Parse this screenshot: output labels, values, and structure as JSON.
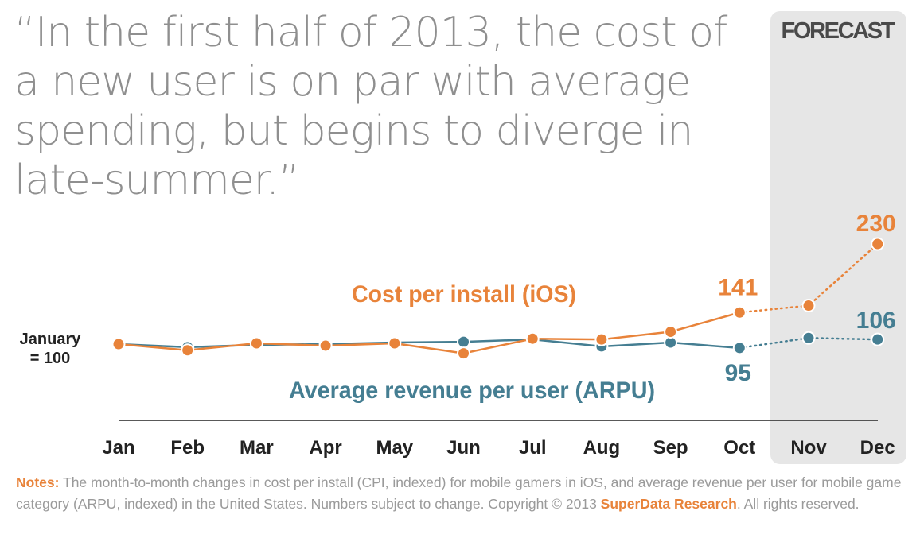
{
  "title": "“In the first half of 2013, the cost of a new user is on par with average spending, but begins to diverge in late-summer.”",
  "forecast_label": "FORECAST",
  "baseline_label": [
    "January",
    "= 100"
  ],
  "colors": {
    "cpi": "#e8833a",
    "arpu": "#457e92",
    "forecast_bg": "#e6e6e6",
    "axis": "#222222"
  },
  "notes": {
    "label": "Notes:",
    "text": " The month-to-month changes in cost per install (CPI, indexed) for mobile gamers in iOS, and average revenue per user for mobile game category (ARPU, indexed) in the United States. Numbers subject to change. Copyright © 2013 ",
    "brand": "SuperData Research",
    "tail": ". All rights reserved."
  },
  "chart_data": {
    "type": "line",
    "x": [
      "Jan",
      "Feb",
      "Mar",
      "Apr",
      "May",
      "Jun",
      "Jul",
      "Aug",
      "Sep",
      "Oct",
      "Nov",
      "Dec"
    ],
    "forecast_start": "Nov",
    "ylim": [
      80,
      240
    ],
    "series": [
      {
        "name": "Cost per install (iOS)",
        "key": "cpi",
        "values": [
          100,
          92,
          101,
          98,
          101,
          88,
          107,
          106,
          116,
          141,
          150,
          230
        ]
      },
      {
        "name": "Average revenue per user (ARPU)",
        "key": "arpu",
        "values": [
          100,
          96,
          99,
          100,
          102,
          103,
          106,
          97,
          102,
          95,
          108,
          106
        ]
      }
    ],
    "annotations": [
      {
        "series": "cpi",
        "x": "Oct",
        "text": "141"
      },
      {
        "series": "cpi",
        "x": "Dec",
        "text": "230"
      },
      {
        "series": "arpu",
        "x": "Oct",
        "text": "95"
      },
      {
        "series": "arpu",
        "x": "Dec",
        "text": "106"
      }
    ]
  }
}
